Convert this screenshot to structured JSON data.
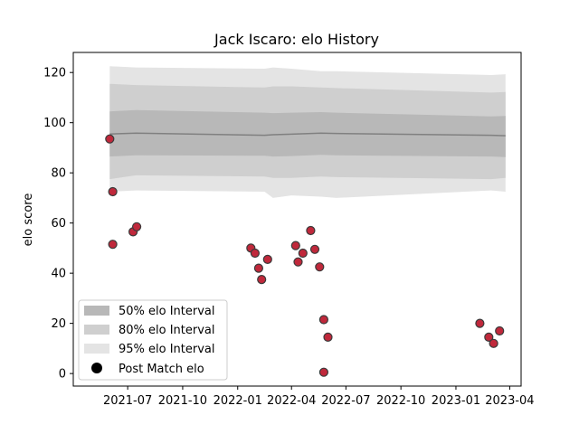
{
  "chart_data": {
    "type": "scatter",
    "title": "Jack Iscaro: elo History",
    "xlabel": "",
    "ylabel": "elo score",
    "ylim": [
      -5,
      128
    ],
    "xlim": [
      "2021-04-01",
      "2023-04-20"
    ],
    "x_ticks": [
      "2021-07",
      "2021-10",
      "2022-01",
      "2022-04",
      "2022-07",
      "2022-10",
      "2023-01",
      "2023-04"
    ],
    "y_ticks": [
      0,
      20,
      40,
      60,
      80,
      100,
      120
    ],
    "grid": false,
    "legend_position": "lower-left",
    "legend": [
      "50% elo Interval",
      "80% elo Interval",
      "95% elo Interval",
      "Post Match elo"
    ],
    "colors": {
      "band50": "#b8b8b8",
      "band80": "#cfcfcf",
      "band95": "#e4e4e4",
      "median": "#808080",
      "point_fill": "#c0283b",
      "point_edge": "#3a3a3a"
    },
    "intervals": {
      "dates": [
        "2021-06-01",
        "2021-07-15",
        "2022-02-15",
        "2022-03-01",
        "2022-04-01",
        "2022-05-20",
        "2022-06-15",
        "2023-03-01",
        "2023-03-25"
      ],
      "median": [
        95.5,
        95.8,
        95,
        95.2,
        95.4,
        95.8,
        95.7,
        95.0,
        94.8
      ],
      "p50_low": [
        86.5,
        87.0,
        86.8,
        86.5,
        86.7,
        87.2,
        87.0,
        86.5,
        86.3
      ],
      "p50_high": [
        104.5,
        105.0,
        104.0,
        103.8,
        104.0,
        104.2,
        104.0,
        102.5,
        102.7
      ],
      "p80_low": [
        77.5,
        79.0,
        78.5,
        78.0,
        78.0,
        78.5,
        78.3,
        77.5,
        78.0
      ],
      "p80_high": [
        115.5,
        115.0,
        114.0,
        114.5,
        114.5,
        114.0,
        113.8,
        112.0,
        112.2
      ],
      "p95_low": [
        72.5,
        73.0,
        72.5,
        70.0,
        71.0,
        70.5,
        70.0,
        73.0,
        72.5
      ],
      "p95_high": [
        122.5,
        122.0,
        121.5,
        122.0,
        121.5,
        120.5,
        120.5,
        119.0,
        119.3
      ]
    },
    "points": [
      {
        "x": "2021-06-01",
        "y": 93.5
      },
      {
        "x": "2021-06-06",
        "y": 72.5
      },
      {
        "x": "2021-06-06",
        "y": 51.5
      },
      {
        "x": "2021-07-10",
        "y": 56.5
      },
      {
        "x": "2021-07-16",
        "y": 58.5
      },
      {
        "x": "2022-01-23",
        "y": 50.0
      },
      {
        "x": "2022-01-30",
        "y": 48.0
      },
      {
        "x": "2022-02-05",
        "y": 42.0
      },
      {
        "x": "2022-02-10",
        "y": 37.5
      },
      {
        "x": "2022-02-20",
        "y": 45.5
      },
      {
        "x": "2022-04-08",
        "y": 51.0
      },
      {
        "x": "2022-04-12",
        "y": 44.5
      },
      {
        "x": "2022-04-20",
        "y": 48.0
      },
      {
        "x": "2022-05-03",
        "y": 57.0
      },
      {
        "x": "2022-05-10",
        "y": 49.5
      },
      {
        "x": "2022-05-18",
        "y": 42.5
      },
      {
        "x": "2022-05-25",
        "y": 21.5
      },
      {
        "x": "2022-05-25",
        "y": 0.5
      },
      {
        "x": "2022-06-01",
        "y": 14.5
      },
      {
        "x": "2023-02-10",
        "y": 20.0
      },
      {
        "x": "2023-02-25",
        "y": 14.5
      },
      {
        "x": "2023-03-05",
        "y": 12.0
      },
      {
        "x": "2023-03-15",
        "y": 17.0
      }
    ]
  }
}
